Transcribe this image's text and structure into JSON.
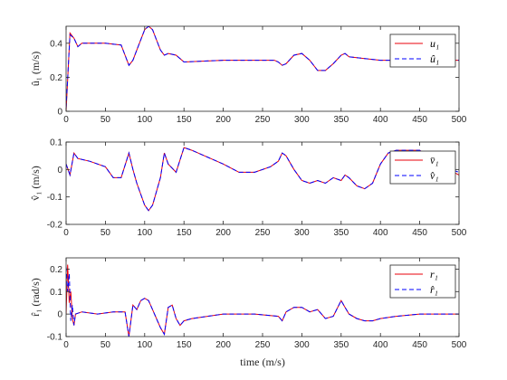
{
  "xlabel": "time (m/s)",
  "colors": {
    "actual": "#e8000b",
    "estimate": "#0000ff",
    "axis": "#262626"
  },
  "chart_data": [
    {
      "type": "line",
      "ylabel": "û₁ (m/s)",
      "xlim": [
        0,
        500
      ],
      "ylim": [
        0,
        0.5
      ],
      "xticks": [
        0,
        50,
        100,
        150,
        200,
        250,
        300,
        350,
        400,
        450,
        500
      ],
      "yticks": [
        0,
        0.2,
        0.4
      ],
      "ytick_labels": [
        "0",
        "0.2",
        "0.4"
      ],
      "legend_position": "top-right",
      "series": [
        {
          "name": "u₁",
          "style": "solid",
          "color": "#e8000b",
          "x": [
            0,
            5,
            10,
            15,
            20,
            30,
            50,
            70,
            75,
            80,
            85,
            90,
            100,
            105,
            110,
            115,
            120,
            125,
            130,
            140,
            150,
            200,
            265,
            270,
            275,
            280,
            290,
            300,
            310,
            320,
            330,
            340,
            350,
            355,
            360,
            380,
            400,
            420,
            500
          ],
          "y": [
            0,
            0.46,
            0.43,
            0.38,
            0.4,
            0.4,
            0.4,
            0.39,
            0.33,
            0.27,
            0.3,
            0.36,
            0.48,
            0.5,
            0.48,
            0.42,
            0.36,
            0.33,
            0.34,
            0.33,
            0.29,
            0.3,
            0.3,
            0.29,
            0.27,
            0.28,
            0.33,
            0.34,
            0.3,
            0.24,
            0.24,
            0.28,
            0.33,
            0.34,
            0.32,
            0.31,
            0.3,
            0.3,
            0.3
          ]
        },
        {
          "name": "û₁",
          "style": "dashed",
          "color": "#0000ff",
          "x": [
            0,
            5,
            10,
            15,
            20,
            30,
            50,
            70,
            75,
            80,
            85,
            90,
            100,
            105,
            110,
            115,
            120,
            125,
            130,
            140,
            150,
            200,
            265,
            270,
            275,
            280,
            290,
            300,
            310,
            320,
            330,
            340,
            350,
            355,
            360,
            380,
            400,
            420,
            500
          ],
          "y": [
            0.02,
            0.45,
            0.43,
            0.38,
            0.4,
            0.4,
            0.4,
            0.39,
            0.33,
            0.27,
            0.3,
            0.36,
            0.48,
            0.5,
            0.48,
            0.42,
            0.36,
            0.33,
            0.34,
            0.33,
            0.29,
            0.3,
            0.3,
            0.29,
            0.27,
            0.28,
            0.33,
            0.34,
            0.3,
            0.24,
            0.24,
            0.28,
            0.33,
            0.34,
            0.32,
            0.31,
            0.3,
            0.3,
            0.3
          ]
        }
      ]
    },
    {
      "type": "line",
      "ylabel": "v̂₁ (m/s)",
      "xlim": [
        0,
        500
      ],
      "ylim": [
        -0.2,
        0.1
      ],
      "xticks": [
        0,
        50,
        100,
        150,
        200,
        250,
        300,
        350,
        400,
        450,
        500
      ],
      "yticks": [
        -0.2,
        -0.1,
        0,
        0.1
      ],
      "ytick_labels": [
        "-0.2",
        "-0.1",
        "0",
        "0.1"
      ],
      "legend_position": "top-right",
      "series": [
        {
          "name": "v̄₁",
          "style": "solid",
          "color": "#e8000b",
          "x": [
            0,
            5,
            10,
            15,
            30,
            50,
            60,
            70,
            80,
            85,
            90,
            100,
            105,
            110,
            120,
            125,
            130,
            140,
            150,
            160,
            200,
            220,
            240,
            260,
            270,
            275,
            280,
            290,
            300,
            310,
            320,
            330,
            340,
            350,
            355,
            360,
            370,
            380,
            390,
            400,
            410,
            420,
            450,
            480,
            500
          ],
          "y": [
            0.02,
            -0.02,
            0.06,
            0.04,
            0.03,
            0.01,
            -0.03,
            -0.03,
            0.06,
            0.0,
            -0.05,
            -0.13,
            -0.15,
            -0.13,
            -0.03,
            0.06,
            0.02,
            -0.01,
            0.08,
            0.07,
            0.02,
            -0.01,
            -0.01,
            0.01,
            0.03,
            0.06,
            0.05,
            0.0,
            -0.04,
            -0.05,
            -0.04,
            -0.05,
            -0.03,
            -0.04,
            -0.02,
            -0.03,
            -0.06,
            -0.07,
            -0.05,
            0.02,
            0.06,
            0.07,
            0.07,
            0.01,
            -0.02
          ]
        },
        {
          "name": "v̂₁",
          "style": "dashed",
          "color": "#0000ff",
          "x": [
            0,
            5,
            10,
            15,
            30,
            50,
            60,
            70,
            80,
            85,
            90,
            100,
            105,
            110,
            120,
            125,
            130,
            140,
            150,
            160,
            200,
            220,
            240,
            260,
            270,
            275,
            280,
            290,
            300,
            310,
            320,
            330,
            340,
            350,
            355,
            360,
            370,
            380,
            390,
            400,
            410,
            420,
            450,
            480,
            500
          ],
          "y": [
            0.02,
            -0.02,
            0.06,
            0.04,
            0.03,
            0.01,
            -0.03,
            -0.03,
            0.06,
            0.0,
            -0.05,
            -0.13,
            -0.15,
            -0.13,
            -0.03,
            0.06,
            0.02,
            -0.01,
            0.08,
            0.07,
            0.02,
            -0.01,
            -0.01,
            0.01,
            0.03,
            0.06,
            0.05,
            0.0,
            -0.04,
            -0.05,
            -0.04,
            -0.05,
            -0.03,
            -0.04,
            -0.02,
            -0.03,
            -0.06,
            -0.07,
            -0.05,
            0.02,
            0.06,
            0.07,
            0.07,
            0.01,
            -0.01
          ]
        }
      ]
    },
    {
      "type": "line",
      "ylabel": "r̂₁ (rad/s)",
      "xlim": [
        0,
        500
      ],
      "ylim": [
        -0.1,
        0.25
      ],
      "xticks": [
        0,
        50,
        100,
        150,
        200,
        250,
        300,
        350,
        400,
        450,
        500
      ],
      "yticks": [
        -0.1,
        0,
        0.1,
        0.2
      ],
      "ytick_labels": [
        "-0.1",
        "0",
        "0.1",
        "0.2"
      ],
      "legend_position": "top-right",
      "series": [
        {
          "name": "r₁",
          "style": "solid",
          "color": "#e8000b",
          "x": [
            0,
            2,
            4,
            6,
            8,
            10,
            12,
            20,
            40,
            60,
            75,
            80,
            85,
            90,
            95,
            100,
            105,
            110,
            115,
            120,
            125,
            130,
            135,
            140,
            145,
            150,
            160,
            200,
            240,
            270,
            275,
            280,
            290,
            300,
            310,
            320,
            325,
            330,
            340,
            350,
            355,
            360,
            370,
            380,
            390,
            400,
            420,
            450,
            500
          ],
          "y": [
            0,
            0.22,
            0.05,
            0.1,
            -0.02,
            -0.05,
            0.0,
            0.01,
            0.0,
            0.01,
            0.01,
            -0.1,
            0.04,
            0.02,
            0.06,
            0.07,
            0.06,
            0.02,
            -0.02,
            -0.06,
            -0.09,
            0.03,
            0.04,
            -0.02,
            -0.05,
            -0.03,
            -0.02,
            0.0,
            0.0,
            -0.01,
            -0.03,
            0.01,
            0.03,
            0.03,
            0.01,
            0.02,
            0.0,
            -0.02,
            -0.01,
            0.06,
            0.03,
            0.0,
            -0.02,
            -0.03,
            -0.03,
            -0.02,
            -0.01,
            0.0,
            0.0
          ]
        },
        {
          "name": "r̂₁",
          "style": "dashed",
          "color": "#0000ff",
          "x": [
            0,
            2,
            4,
            6,
            8,
            10,
            12,
            20,
            40,
            60,
            75,
            80,
            85,
            90,
            95,
            100,
            105,
            110,
            115,
            120,
            125,
            130,
            135,
            140,
            145,
            150,
            160,
            200,
            240,
            270,
            275,
            280,
            290,
            300,
            310,
            320,
            325,
            330,
            340,
            350,
            355,
            360,
            370,
            380,
            390,
            400,
            420,
            450,
            500
          ],
          "y": [
            0.21,
            0.1,
            0.18,
            -0.03,
            0.04,
            -0.05,
            0.0,
            0.01,
            0.0,
            0.01,
            0.01,
            -0.1,
            0.04,
            0.02,
            0.06,
            0.07,
            0.06,
            0.02,
            -0.02,
            -0.06,
            -0.09,
            0.03,
            0.04,
            -0.02,
            -0.05,
            -0.03,
            -0.02,
            0.0,
            0.0,
            -0.01,
            -0.03,
            0.01,
            0.03,
            0.03,
            0.01,
            0.02,
            0.0,
            -0.02,
            -0.01,
            0.06,
            0.03,
            0.0,
            -0.02,
            -0.03,
            -0.03,
            -0.02,
            -0.01,
            0.0,
            0.0
          ]
        }
      ]
    }
  ]
}
